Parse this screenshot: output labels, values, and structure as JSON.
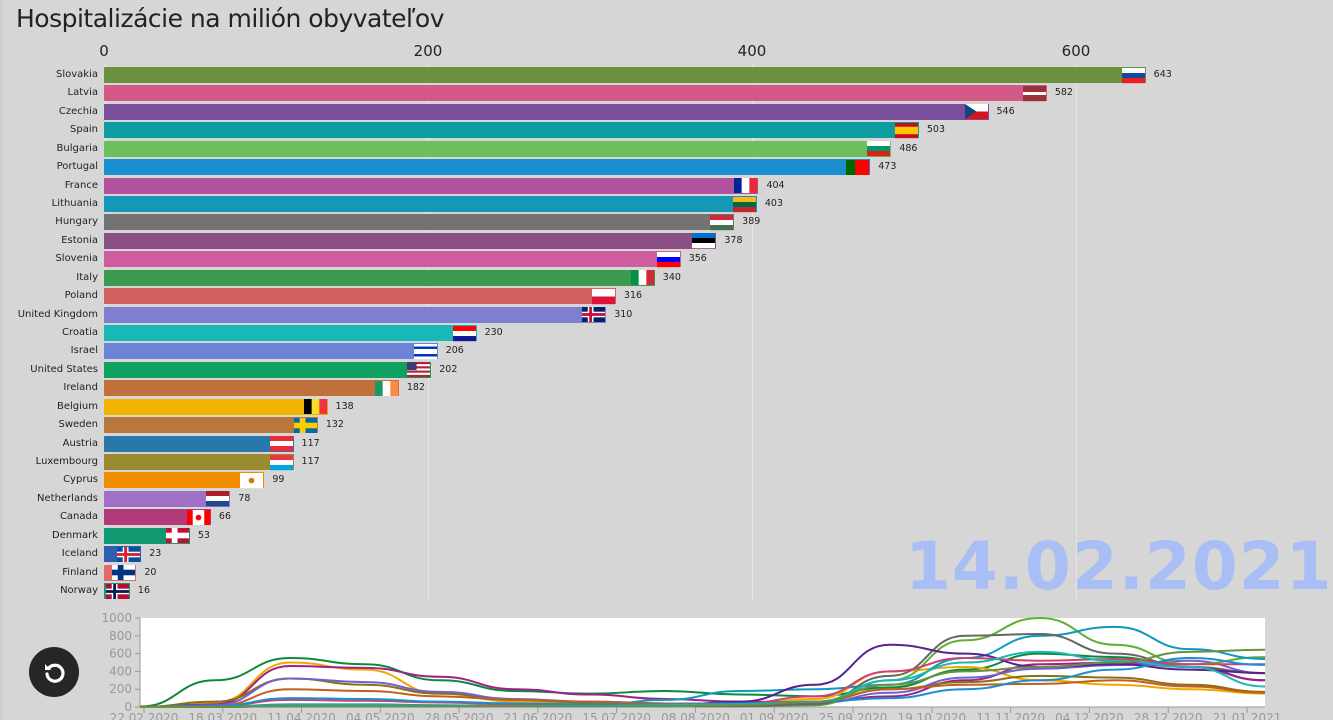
{
  "chart_data": [
    {
      "type": "bar",
      "title": "Hospitalizácie na milión obyvateľov",
      "orientation": "horizontal",
      "xlim": [
        0,
        650
      ],
      "xticks": [
        "0",
        "200",
        "400",
        "600"
      ],
      "grid": true,
      "current_date": "14.02.2021",
      "categories": [
        "Slovakia",
        "Latvia",
        "Czechia",
        "Spain",
        "Bulgaria",
        "Portugal",
        "France",
        "Lithuania",
        "Hungary",
        "Estonia",
        "Slovenia",
        "Italy",
        "Poland",
        "United Kingdom",
        "Croatia",
        "Israel",
        "United States",
        "Ireland",
        "Belgium",
        "Sweden",
        "Austria",
        "Luxembourg",
        "Cyprus",
        "Netherlands",
        "Canada",
        "Denmark",
        "Iceland",
        "Finland",
        "Norway"
      ],
      "values": [
        643,
        582,
        546,
        503,
        486,
        473,
        404,
        403,
        389,
        378,
        356,
        340,
        316,
        310,
        230,
        206,
        202,
        182,
        138,
        132,
        117,
        117,
        99,
        78,
        66,
        53,
        23,
        20,
        16
      ],
      "colors": [
        "#6a9140",
        "#d35a86",
        "#7a4f9c",
        "#0d9ca0",
        "#6cbf5a",
        "#1a8fd0",
        "#b0529e",
        "#1597b8",
        "#737373",
        "#8a4f85",
        "#cf5c9e",
        "#3c9a50",
        "#d1605e",
        "#7f7fd0",
        "#18b8b8",
        "#6b84d6",
        "#10a060",
        "#c0703a",
        "#f0b400",
        "#b8783c",
        "#2a78a8",
        "#9a8a30",
        "#f08c00",
        "#a070c8",
        "#b03a78",
        "#109870",
        "#2f5fb0",
        "#e06a6a",
        "#1a9a60"
      ],
      "flags": [
        {
          "d": "h",
          "s": [
            "#ffffff",
            "#0b4ea2",
            "#ee1c25"
          ]
        },
        {
          "d": "h",
          "s": [
            "#9e3039",
            "#9e3039",
            "#ffffff",
            "#9e3039",
            "#9e3039"
          ]
        },
        {
          "d": "h",
          "s": [
            "#ffffff",
            "#d7141a"
          ],
          "tri": "#11457e"
        },
        {
          "d": "h",
          "s": [
            "#c60b1e",
            "#ffc400",
            "#ffc400",
            "#c60b1e"
          ]
        },
        {
          "d": "h",
          "s": [
            "#ffffff",
            "#00966e",
            "#d62612"
          ]
        },
        {
          "d": "v",
          "s": [
            "#006600",
            "#006600",
            "#ff0000",
            "#ff0000",
            "#ff0000"
          ]
        },
        {
          "d": "v",
          "s": [
            "#002395",
            "#ffffff",
            "#ed2939"
          ]
        },
        {
          "d": "h",
          "s": [
            "#fdb913",
            "#006a44",
            "#c1272d"
          ]
        },
        {
          "d": "h",
          "s": [
            "#ce2939",
            "#ffffff",
            "#477050"
          ]
        },
        {
          "d": "h",
          "s": [
            "#0072ce",
            "#000000",
            "#ffffff"
          ]
        },
        {
          "d": "h",
          "s": [
            "#ffffff",
            "#0000ff",
            "#ff0000"
          ]
        },
        {
          "d": "v",
          "s": [
            "#009246",
            "#ffffff",
            "#ce2b37"
          ]
        },
        {
          "d": "h",
          "s": [
            "#ffffff",
            "#dc143c"
          ]
        },
        {
          "d": "c",
          "s": [
            "#012169",
            "#ffffff",
            "#c8102e"
          ]
        },
        {
          "d": "h",
          "s": [
            "#ff0000",
            "#ffffff",
            "#171796"
          ]
        },
        {
          "d": "h",
          "s": [
            "#ffffff",
            "#0038b8",
            "#ffffff",
            "#ffffff",
            "#0038b8",
            "#ffffff"
          ]
        },
        {
          "d": "h",
          "s": [
            "#b22234",
            "#ffffff",
            "#b22234",
            "#ffffff",
            "#b22234",
            "#ffffff",
            "#b22234"
          ],
          "canton": "#3c3b6e"
        },
        {
          "d": "v",
          "s": [
            "#169b62",
            "#ffffff",
            "#ff883e"
          ]
        },
        {
          "d": "v",
          "s": [
            "#000000",
            "#fdda24",
            "#ef3340"
          ]
        },
        {
          "d": "c",
          "s": [
            "#006aa7",
            "#fecc00",
            "#fecc00"
          ]
        },
        {
          "d": "h",
          "s": [
            "#ed2939",
            "#ffffff",
            "#ed2939"
          ]
        },
        {
          "d": "h",
          "s": [
            "#ef3340",
            "#ffffff",
            "#00a3e0"
          ]
        },
        {
          "d": "h",
          "s": [
            "#ffffff"
          ],
          "dot": "#d57800"
        },
        {
          "d": "h",
          "s": [
            "#ae1c28",
            "#ffffff",
            "#21468b"
          ]
        },
        {
          "d": "v",
          "s": [
            "#ff0000",
            "#ffffff",
            "#ffffff",
            "#ff0000"
          ],
          "dot": "#ff0000"
        },
        {
          "d": "c",
          "s": [
            "#c60c30",
            "#ffffff",
            "#ffffff"
          ]
        },
        {
          "d": "c",
          "s": [
            "#02529c",
            "#ffffff",
            "#dc1e35"
          ]
        },
        {
          "d": "c",
          "s": [
            "#ffffff",
            "#003580",
            "#003580"
          ]
        },
        {
          "d": "c",
          "s": [
            "#ba0c2f",
            "#ffffff",
            "#00205b"
          ]
        }
      ]
    },
    {
      "type": "line",
      "ylim": [
        0,
        1000
      ],
      "yticks": [
        "0",
        "200",
        "400",
        "600",
        "800",
        "1000"
      ],
      "xticks": [
        "22.02.2020",
        "18.03.2020",
        "11.04.2020",
        "04.05.2020",
        "28.05.2020",
        "21.06.2020",
        "15.07.2020",
        "08.08.2020",
        "01.09.2020",
        "25.09.2020",
        "19.10.2020",
        "11.11.2020",
        "04.12.2020",
        "28.12.2020",
        "21.01.2021"
      ],
      "series": [
        {
          "color": "#0a8a3a",
          "values": [
            5,
            300,
            550,
            480,
            300,
            180,
            150,
            180,
            140,
            120,
            220,
            420,
            600,
            560,
            450,
            300
          ]
        },
        {
          "color": "#f0a800",
          "values": [
            0,
            50,
            500,
            420,
            150,
            60,
            30,
            20,
            30,
            90,
            400,
            450,
            300,
            250,
            200,
            150
          ]
        },
        {
          "color": "#a0208a",
          "values": [
            0,
            30,
            460,
            440,
            340,
            200,
            140,
            90,
            60,
            50,
            120,
            300,
            480,
            500,
            450,
            300
          ]
        },
        {
          "color": "#8a7010",
          "values": [
            0,
            60,
            320,
            250,
            150,
            80,
            50,
            40,
            40,
            60,
            200,
            280,
            350,
            330,
            250,
            170
          ]
        },
        {
          "color": "#7060d0",
          "values": [
            0,
            20,
            320,
            280,
            170,
            90,
            60,
            40,
            40,
            40,
            160,
            330,
            430,
            470,
            520,
            380
          ]
        },
        {
          "color": "#60b030",
          "values": [
            0,
            0,
            20,
            20,
            10,
            10,
            10,
            10,
            10,
            20,
            300,
            750,
            1000,
            700,
            480,
            560
          ]
        },
        {
          "color": "#0a9ac0",
          "values": [
            0,
            0,
            30,
            30,
            20,
            10,
            10,
            80,
            180,
            200,
            250,
            550,
            800,
            900,
            650,
            540
          ]
        },
        {
          "color": "#666666",
          "values": [
            0,
            0,
            10,
            10,
            10,
            10,
            10,
            10,
            10,
            30,
            350,
            800,
            820,
            600,
            450,
            380
          ]
        },
        {
          "color": "#5a2090",
          "values": [
            0,
            0,
            10,
            10,
            10,
            10,
            10,
            20,
            60,
            250,
            700,
            600,
            450,
            480,
            420,
            380
          ]
        },
        {
          "color": "#d04070",
          "values": [
            0,
            10,
            80,
            70,
            50,
            30,
            20,
            20,
            40,
            120,
            400,
            550,
            520,
            540,
            480,
            480
          ]
        },
        {
          "color": "#c06020",
          "values": [
            0,
            10,
            200,
            180,
            120,
            80,
            60,
            40,
            40,
            60,
            200,
            250,
            260,
            300,
            230,
            160
          ]
        },
        {
          "color": "#1a8fd0",
          "values": [
            0,
            10,
            100,
            90,
            60,
            40,
            30,
            30,
            40,
            60,
            100,
            200,
            300,
            420,
            550,
            473
          ]
        },
        {
          "color": "#18b8b8",
          "values": [
            0,
            0,
            20,
            20,
            10,
            10,
            10,
            20,
            30,
            60,
            300,
            500,
            620,
            520,
            450,
            230
          ]
        },
        {
          "color": "#6a9140",
          "values": [
            0,
            0,
            10,
            10,
            10,
            10,
            10,
            10,
            20,
            60,
            250,
            400,
            450,
            500,
            620,
            643
          ]
        }
      ]
    }
  ],
  "controls": {
    "replay_icon": "replay-icon"
  }
}
